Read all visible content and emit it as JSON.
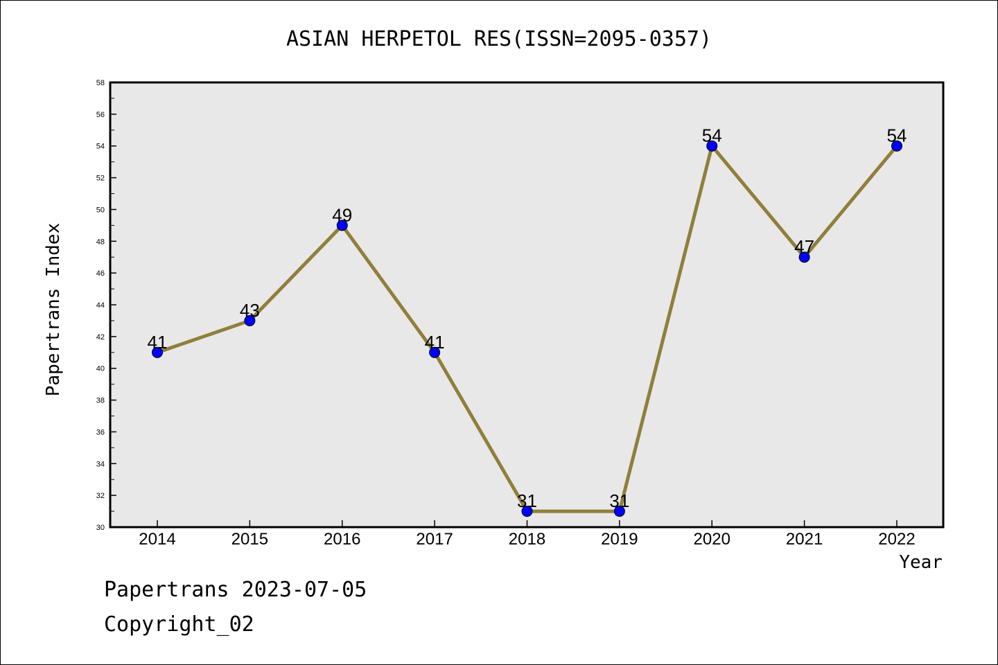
{
  "chart_data": {
    "type": "line",
    "title": "ASIAN HERPETOL RES(ISSN=2095-0357)",
    "xlabel": "Year",
    "ylabel": "Papertrans Index",
    "categories": [
      "2014",
      "2015",
      "2016",
      "2017",
      "2018",
      "2019",
      "2020",
      "2021",
      "2022"
    ],
    "series": [
      {
        "values": [
          41,
          43,
          49,
          41,
          31,
          31,
          54,
          47,
          54
        ]
      }
    ],
    "ylim": [
      30,
      58
    ],
    "yticks": [
      30,
      32,
      34,
      36,
      38,
      40,
      42,
      44,
      46,
      48,
      50,
      52,
      54,
      56,
      58
    ],
    "grid": false,
    "data_labels": true,
    "colors": {
      "line": "#8f7f3a",
      "marker": "#0000ff",
      "plot_background": "#e8e8e8"
    }
  },
  "footer": {
    "line1": "Papertrans 2023-07-05",
    "line2": "Copyright_02"
  }
}
